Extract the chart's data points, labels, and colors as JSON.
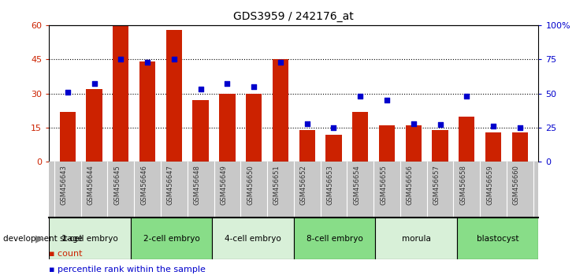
{
  "title": "GDS3959 / 242176_at",
  "categories": [
    "GSM456643",
    "GSM456644",
    "GSM456645",
    "GSM456646",
    "GSM456647",
    "GSM456648",
    "GSM456649",
    "GSM456650",
    "GSM456651",
    "GSM456652",
    "GSM456653",
    "GSM456654",
    "GSM456655",
    "GSM456656",
    "GSM456657",
    "GSM456658",
    "GSM456659",
    "GSM456660"
  ],
  "bar_values": [
    22,
    32,
    60,
    44,
    58,
    27,
    30,
    30,
    45,
    14,
    12,
    22,
    16,
    16,
    14,
    20,
    13,
    13
  ],
  "scatter_values": [
    51,
    57,
    75,
    73,
    75,
    53,
    57,
    55,
    73,
    28,
    25,
    48,
    45,
    28,
    27,
    48,
    26,
    25
  ],
  "stages": [
    {
      "label": "1-cell embryo",
      "start": 0,
      "end": 3,
      "color": "#d8f0d8"
    },
    {
      "label": "2-cell embryo",
      "start": 3,
      "end": 6,
      "color": "#88dd88"
    },
    {
      "label": "4-cell embryo",
      "start": 6,
      "end": 9,
      "color": "#d8f0d8"
    },
    {
      "label": "8-cell embryo",
      "start": 9,
      "end": 12,
      "color": "#88dd88"
    },
    {
      "label": "morula",
      "start": 12,
      "end": 15,
      "color": "#d8f0d8"
    },
    {
      "label": "blastocyst",
      "start": 15,
      "end": 18,
      "color": "#88dd88"
    }
  ],
  "ylim_left": [
    0,
    60
  ],
  "ylim_right": [
    0,
    100
  ],
  "yticks_left": [
    0,
    15,
    30,
    45,
    60
  ],
  "yticks_right": [
    0,
    25,
    50,
    75,
    100
  ],
  "ytick_labels_right": [
    "0",
    "25",
    "50",
    "75",
    "100%"
  ],
  "bar_color": "#cc2200",
  "scatter_color": "#0000cc",
  "bg_color": "#ffffff",
  "plot_bg_color": "#ffffff",
  "xlabel_bg_color": "#c8c8c8",
  "tick_label_color_left": "#cc2200",
  "tick_label_color_right": "#0000cc",
  "xlabel_color": "#333333"
}
